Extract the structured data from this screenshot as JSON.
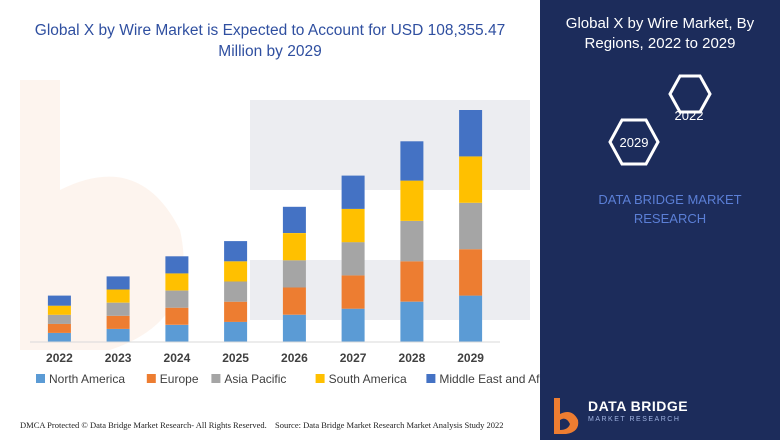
{
  "left_panel": {
    "title_line1": "Global X by Wire Market is Expected to Account for USD 108,355.47",
    "title_line2": "Million by 2029",
    "footer_left": "DMCA Protected © Data Bridge Market Research- All Rights Reserved.",
    "footer_source": "Source: Data Bridge Market Research Market Analysis Study 2022"
  },
  "right_panel": {
    "title_line1": "Global X by Wire Market, By",
    "title_line2": "Regions, 2022 to 2029",
    "hex_start": "2022",
    "hex_end": "2029",
    "company_line1": "DATA BRIDGE MARKET",
    "company_line2": "RESEARCH",
    "brand_name": "DATA BRIDGE",
    "brand_sub": "MARKET RESEARCH"
  },
  "colors": {
    "accent": "#2f4fa0",
    "panel_bg": "#1c2c5b",
    "north_america": "#5b9bd5",
    "europe": "#ed7d31",
    "asia_pacific": "#a5a5a5",
    "south_america": "#ffc000",
    "middle_east_africa": "#4472c4"
  },
  "chart_data": {
    "type": "bar",
    "stacked": true,
    "categories": [
      "2022",
      "2023",
      "2024",
      "2025",
      "2026",
      "2027",
      "2028",
      "2029"
    ],
    "series": [
      {
        "name": "North America",
        "color": "#5b9bd5",
        "values": [
          9,
          13,
          17,
          20,
          27,
          33,
          40,
          46
        ]
      },
      {
        "name": "Europe",
        "color": "#ed7d31",
        "values": [
          9,
          13,
          17,
          20,
          27,
          33,
          40,
          46
        ]
      },
      {
        "name": "Asia Pacific",
        "color": "#a5a5a5",
        "values": [
          9,
          13,
          17,
          20,
          27,
          33,
          40,
          46
        ]
      },
      {
        "name": "South America",
        "color": "#ffc000",
        "values": [
          9,
          13,
          17,
          20,
          27,
          33,
          40,
          46
        ]
      },
      {
        "name": "Middle East and Africa",
        "color": "#4472c4",
        "values": [
          10,
          13,
          17,
          20,
          26,
          33,
          39,
          46
        ]
      }
    ],
    "legend_position": "bottom",
    "grid": false
  }
}
